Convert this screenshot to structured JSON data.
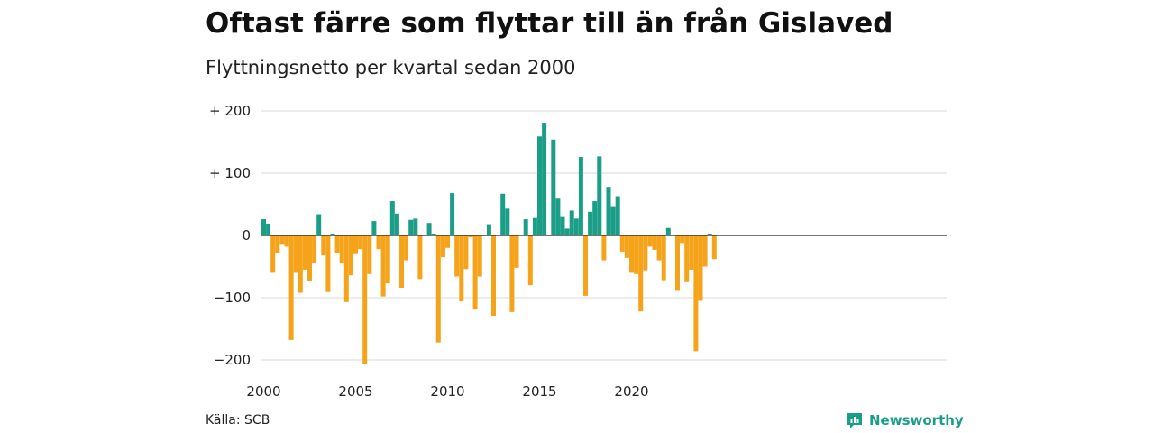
{
  "title": "Oftast färre som flyttar till än från Gislaved",
  "subtitle": "Flyttningsnetto per kvartal sedan 2000",
  "source": "Källa: SCB",
  "brand": "Newsworthy",
  "colors": {
    "positive": "#1b9e88",
    "negative": "#f5a31a",
    "grid": "#d9d9d9",
    "zero": "#222222"
  },
  "chart_data": {
    "type": "bar",
    "ylim": [
      -210,
      210
    ],
    "yticks": [
      200,
      100,
      0,
      -100,
      -200
    ],
    "ytick_labels": [
      "+ 200",
      "+ 100",
      "0",
      "−100",
      "−200"
    ],
    "xticks": [
      "2000",
      "2005",
      "2010",
      "2015",
      "2020"
    ],
    "start_year": 2000,
    "grid": true,
    "values": [
      26,
      19,
      -60,
      -28,
      -15,
      -18,
      -168,
      -60,
      -92,
      -55,
      -73,
      -45,
      34,
      -32,
      -91,
      3,
      -28,
      -45,
      -107,
      -64,
      -30,
      -22,
      -206,
      -62,
      23,
      -22,
      -98,
      -77,
      55,
      35,
      -84,
      -40,
      25,
      27,
      -70,
      0,
      20,
      3,
      -172,
      -35,
      -20,
      68,
      -66,
      -106,
      -54,
      -3,
      -119,
      -66,
      0,
      18,
      -129,
      0,
      67,
      43,
      -123,
      -52,
      0,
      26,
      -80,
      28,
      159,
      181,
      0,
      154,
      59,
      31,
      11,
      40,
      27,
      126,
      -97,
      38,
      55,
      127,
      -40,
      78,
      47,
      63,
      -26,
      -36,
      -60,
      -62,
      -122,
      -56,
      -18,
      -23,
      -40,
      -72,
      12,
      0,
      -89,
      -12,
      -75,
      -55,
      -186,
      -105,
      -50,
      3,
      -38
    ]
  }
}
